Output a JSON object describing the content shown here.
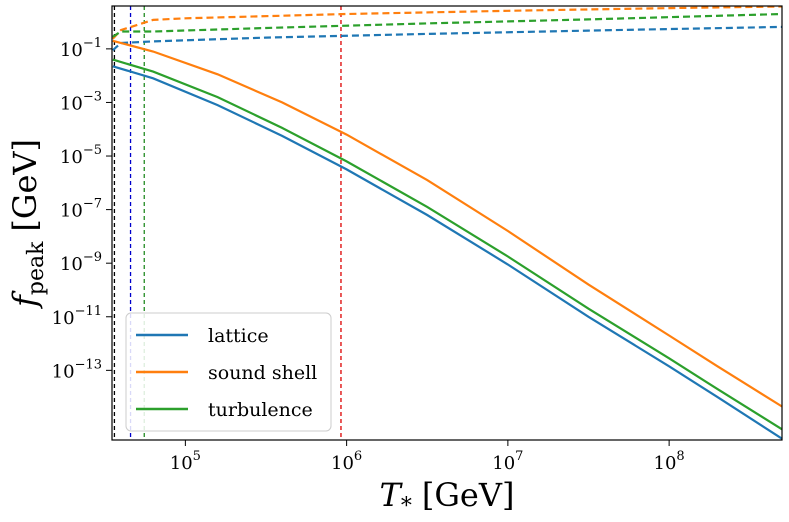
{
  "chart_data": {
    "type": "line",
    "title": "",
    "xlabel": {
      "symbol": "T",
      "subscript": "*",
      "unit": "[GeV]"
    },
    "ylabel": {
      "symbol": "f",
      "subscript": "peak",
      "unit": "[GeV]"
    },
    "xscale": "log",
    "yscale": "log",
    "xlim_log10": [
      4.545,
      8.7
    ],
    "ylim_log10": [
      -15.6,
      0.6
    ],
    "x_ticks": [
      {
        "base": "10",
        "exp": "5",
        "log10": 5
      },
      {
        "base": "10",
        "exp": "6",
        "log10": 6
      },
      {
        "base": "10",
        "exp": "7",
        "log10": 7
      },
      {
        "base": "10",
        "exp": "8",
        "log10": 8
      }
    ],
    "y_ticks": [
      {
        "base": "10",
        "exp": "−1",
        "log10": -1
      },
      {
        "base": "10",
        "exp": "−3",
        "log10": -3
      },
      {
        "base": "10",
        "exp": "−5",
        "log10": -5
      },
      {
        "base": "10",
        "exp": "−7",
        "log10": -7
      },
      {
        "base": "10",
        "exp": "−9",
        "log10": -9
      },
      {
        "base": "10",
        "exp": "−11",
        "log10": -11
      },
      {
        "base": "10",
        "exp": "−13",
        "log10": -13
      }
    ],
    "series": [
      {
        "name": "lattice",
        "color": "#1f77b4",
        "solid_log10": [
          [
            4.55,
            -1.65
          ],
          [
            4.8,
            -2.1
          ],
          [
            5.2,
            -3.1
          ],
          [
            5.6,
            -4.25
          ],
          [
            6.0,
            -5.5
          ],
          [
            6.5,
            -7.2
          ],
          [
            7.0,
            -9.05
          ],
          [
            7.5,
            -11.0
          ],
          [
            8.0,
            -12.85
          ],
          [
            8.3,
            -14.0
          ],
          [
            8.7,
            -15.55
          ]
        ],
        "dashed_log10": [
          [
            4.55,
            -1.05
          ],
          [
            4.6,
            -0.78
          ],
          [
            4.8,
            -0.72
          ],
          [
            5.5,
            -0.58
          ],
          [
            6.5,
            -0.44
          ],
          [
            7.5,
            -0.32
          ],
          [
            8.7,
            -0.18
          ]
        ]
      },
      {
        "name": "sound shell",
        "color": "#ff7f0e",
        "solid_log10": [
          [
            4.55,
            -0.7
          ],
          [
            4.8,
            -1.1
          ],
          [
            5.2,
            -1.95
          ],
          [
            5.6,
            -3.0
          ],
          [
            6.0,
            -4.2
          ],
          [
            6.5,
            -5.9
          ],
          [
            7.0,
            -7.8
          ],
          [
            7.5,
            -9.8
          ],
          [
            8.0,
            -11.7
          ],
          [
            8.3,
            -12.85
          ],
          [
            8.7,
            -14.35
          ]
        ],
        "dashed_log10": [
          [
            4.55,
            -0.62
          ],
          [
            4.6,
            -0.3
          ],
          [
            4.8,
            0.08
          ],
          [
            5.0,
            0.14
          ],
          [
            6.0,
            0.3
          ],
          [
            7.0,
            0.42
          ],
          [
            8.0,
            0.52
          ],
          [
            8.7,
            0.58
          ]
        ]
      },
      {
        "name": "turbulence",
        "color": "#2ca02c",
        "solid_log10": [
          [
            4.55,
            -1.4
          ],
          [
            4.8,
            -1.85
          ],
          [
            5.2,
            -2.8
          ],
          [
            5.6,
            -3.95
          ],
          [
            6.0,
            -5.2
          ],
          [
            6.5,
            -6.9
          ],
          [
            7.0,
            -8.75
          ],
          [
            7.5,
            -10.7
          ],
          [
            8.0,
            -12.55
          ],
          [
            8.3,
            -13.7
          ],
          [
            8.7,
            -15.2
          ]
        ],
        "dashed_log10": [
          [
            4.55,
            -0.55
          ],
          [
            4.6,
            -0.35
          ],
          [
            4.8,
            -0.35
          ],
          [
            5.5,
            -0.22
          ],
          [
            6.5,
            -0.05
          ],
          [
            7.5,
            0.1
          ],
          [
            8.7,
            0.3
          ]
        ]
      }
    ],
    "vertical_markers": [
      {
        "log10": 4.56,
        "color": "#000000"
      },
      {
        "log10": 4.66,
        "color": "#0000cc"
      },
      {
        "log10": 4.745,
        "color": "#228b22"
      },
      {
        "log10": 5.965,
        "color": "#dd0000"
      }
    ],
    "legend": {
      "position": "lower-left"
    }
  }
}
